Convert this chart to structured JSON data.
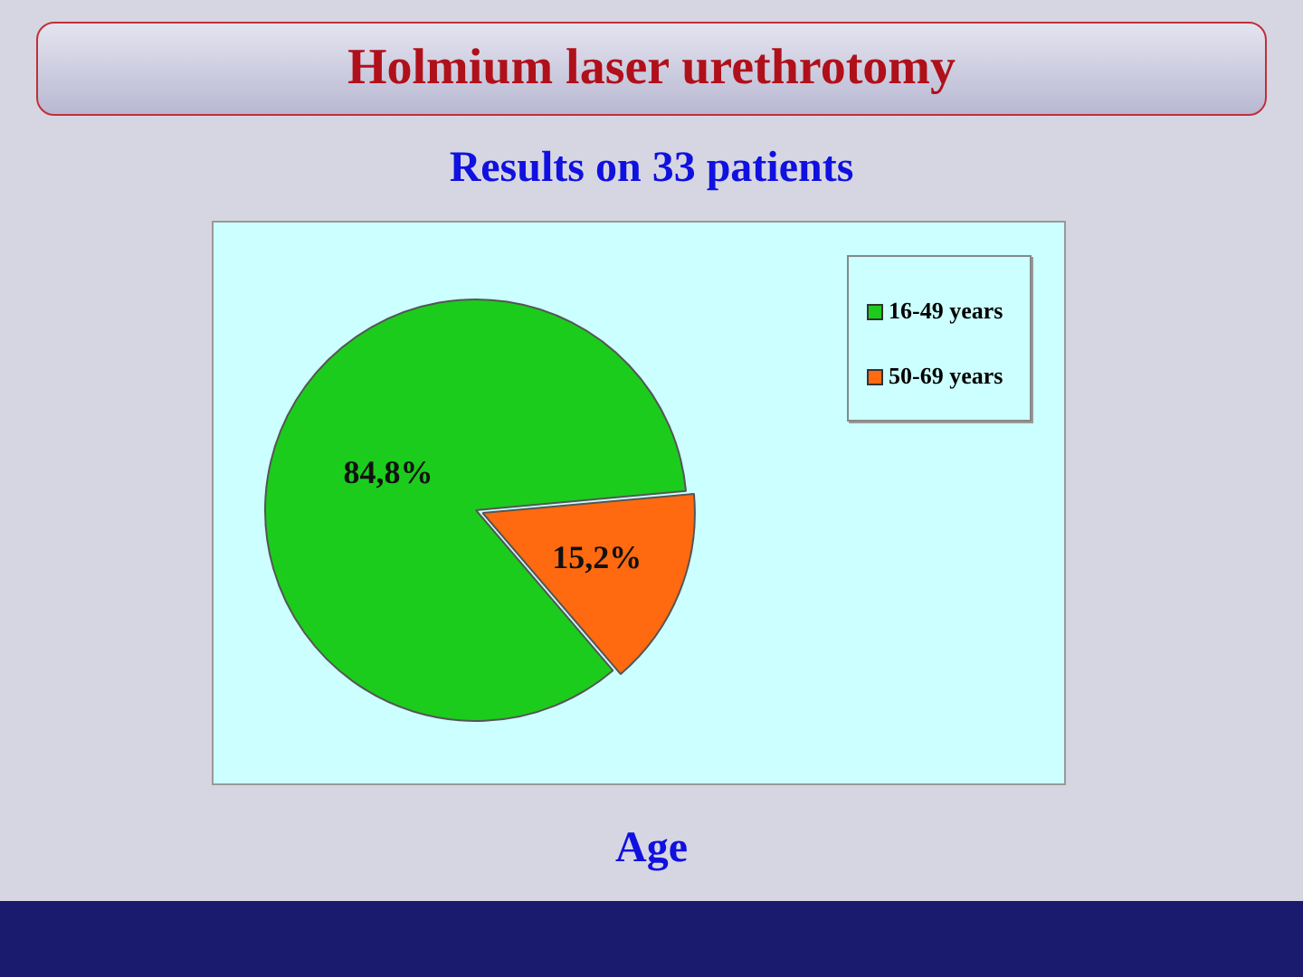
{
  "chart_data": {
    "type": "pie",
    "title": "Holmium laser urethrotomy",
    "subtitle": "Results on 33 patients",
    "xlabel": "Age",
    "categories": [
      "16-49 years",
      "50-69 years"
    ],
    "values": [
      84.8,
      15.2
    ],
    "colors": [
      "#1ccc1c",
      "#ff6a10"
    ],
    "value_labels": [
      "84,8%",
      "15,2%"
    ],
    "legend": "top right"
  }
}
